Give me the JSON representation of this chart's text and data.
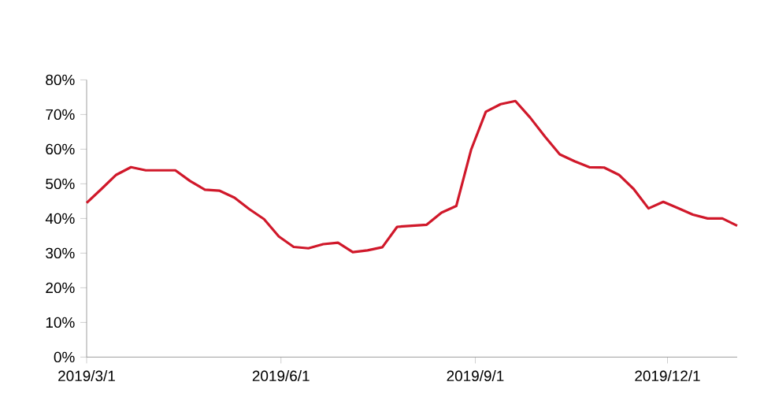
{
  "chart_data": {
    "type": "line",
    "x": [
      "2019-03-01",
      "2019-03-08",
      "2019-03-15",
      "2019-03-22",
      "2019-03-29",
      "2019-04-05",
      "2019-04-12",
      "2019-04-19",
      "2019-04-26",
      "2019-05-03",
      "2019-05-10",
      "2019-05-17",
      "2019-05-24",
      "2019-05-31",
      "2019-06-07",
      "2019-06-14",
      "2019-06-21",
      "2019-06-28",
      "2019-07-05",
      "2019-07-12",
      "2019-07-19",
      "2019-07-26",
      "2019-08-02",
      "2019-08-09",
      "2019-08-16",
      "2019-08-23",
      "2019-08-30",
      "2019-09-06",
      "2019-09-13",
      "2019-09-20",
      "2019-09-27",
      "2019-10-04",
      "2019-10-11",
      "2019-10-18",
      "2019-10-25",
      "2019-11-01",
      "2019-11-08",
      "2019-11-15",
      "2019-11-22",
      "2019-11-29",
      "2019-12-06",
      "2019-12-13",
      "2019-12-20",
      "2019-12-27",
      "2020-01-03"
    ],
    "values": [
      44.5,
      48.5,
      52.6,
      54.8,
      53.9,
      53.9,
      53.9,
      50.8,
      48.3,
      48,
      46,
      42.7,
      39.8,
      34.8,
      31.8,
      31.4,
      32.6,
      33,
      30.3,
      30.8,
      31.7,
      37.6,
      37.9,
      38.2,
      41.7,
      43.6,
      59.8,
      70.8,
      73,
      73.9,
      69.1,
      63.6,
      58.5,
      56.5,
      54.8,
      54.7,
      52.6,
      48.5,
      42.9,
      44.8,
      43,
      41.1,
      40,
      40,
      37.9
    ],
    "color": "#d0182a",
    "xlim": [
      "2019-03-01",
      "2020-01-03"
    ],
    "xticks": [
      {
        "value": "2019-03-01",
        "label": "2019/3/1"
      },
      {
        "value": "2019-06-01",
        "label": "2019/6/1"
      },
      {
        "value": "2019-09-01",
        "label": "2019/9/1"
      },
      {
        "value": "2019-12-01",
        "label": "2019/12/1"
      }
    ],
    "ylim": [
      0,
      80
    ],
    "yticks": [
      {
        "value": 0,
        "label": "0%"
      },
      {
        "value": 10,
        "label": "10%"
      },
      {
        "value": 20,
        "label": "20%"
      },
      {
        "value": 30,
        "label": "30%"
      },
      {
        "value": 40,
        "label": "40%"
      },
      {
        "value": 50,
        "label": "50%"
      },
      {
        "value": 60,
        "label": "60%"
      },
      {
        "value": 70,
        "label": "70%"
      },
      {
        "value": 80,
        "label": "80%"
      }
    ]
  }
}
